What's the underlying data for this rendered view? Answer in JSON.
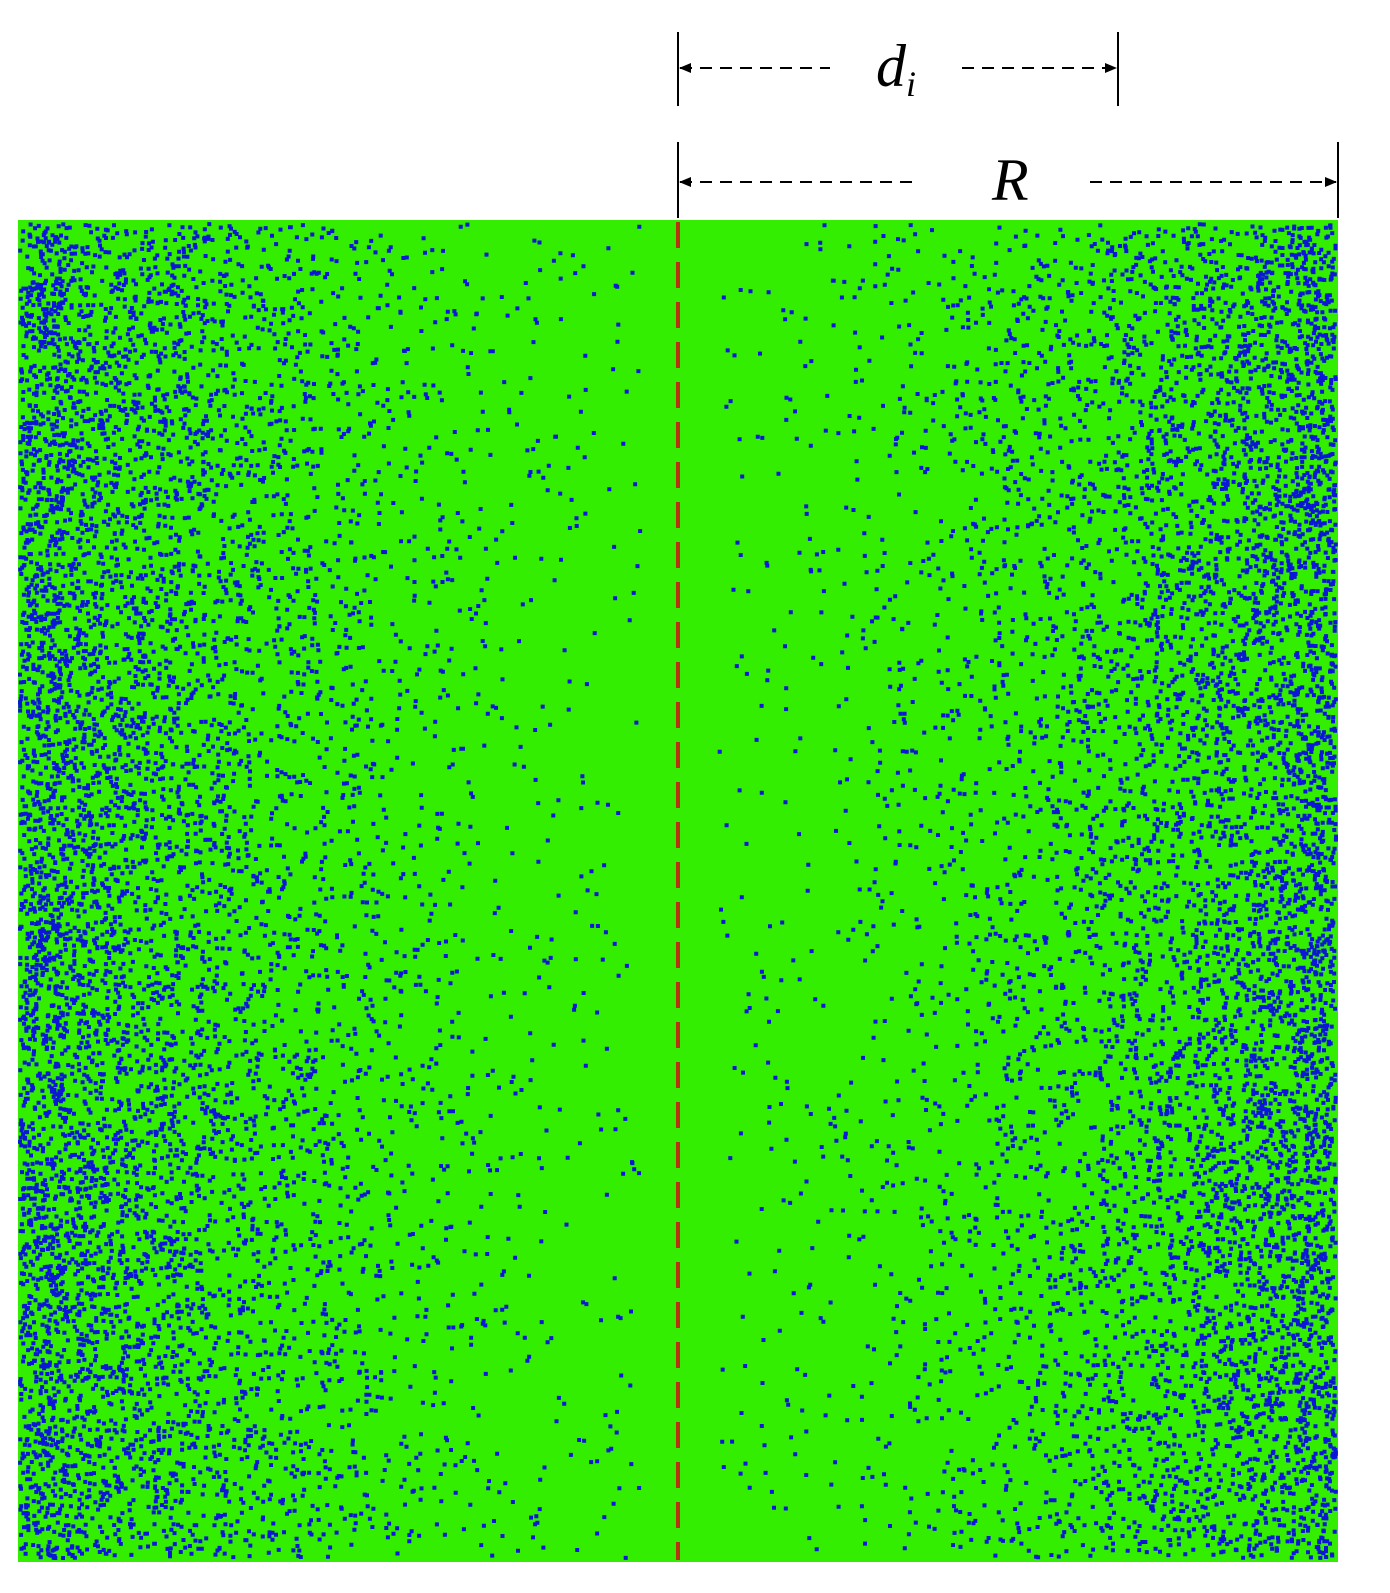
{
  "annotations": [
    {
      "text": "d",
      "subscript": "i"
    },
    {
      "text": "R"
    }
  ]
}
